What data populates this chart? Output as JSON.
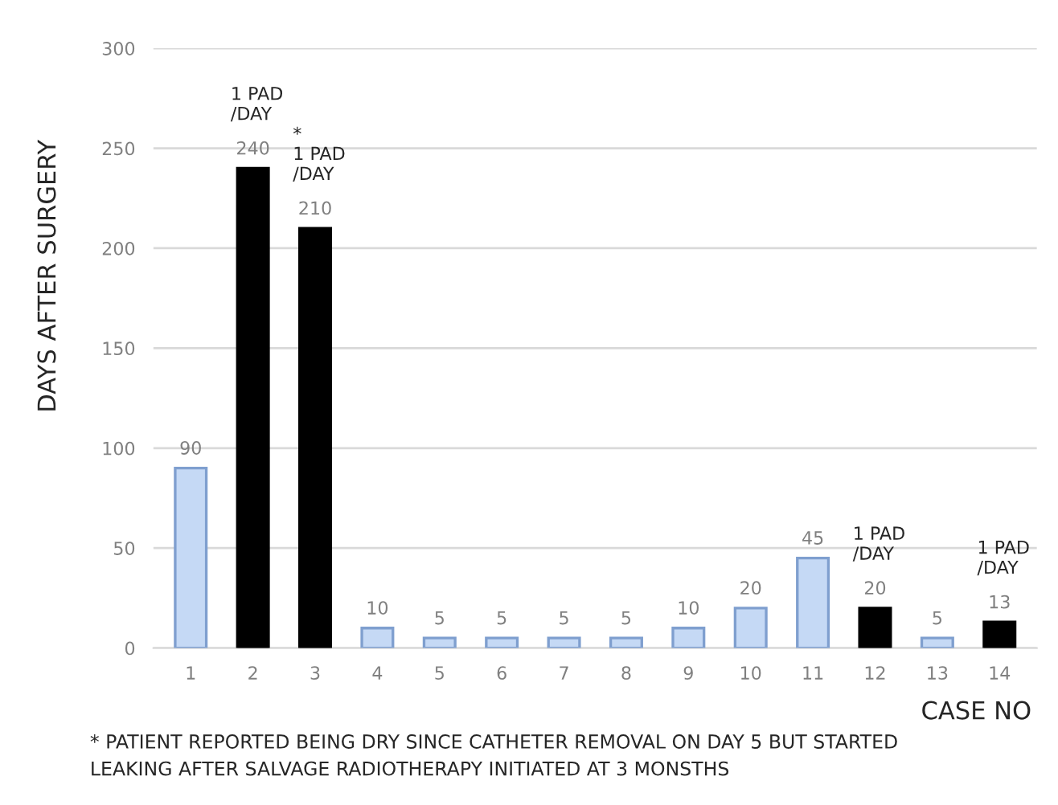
{
  "chart_data": {
    "type": "bar",
    "xlabel": "CASE NO",
    "ylabel": "DAYS AFTER SURGERY",
    "categories": [
      "1",
      "2",
      "3",
      "4",
      "5",
      "6",
      "7",
      "8",
      "9",
      "10",
      "11",
      "12",
      "13",
      "14"
    ],
    "values": [
      90,
      240,
      210,
      10,
      5,
      5,
      5,
      5,
      10,
      20,
      45,
      20,
      5,
      13
    ],
    "colors": [
      "#c5d9f5",
      "#000000",
      "#000000",
      "#c5d9f5",
      "#c5d9f5",
      "#c5d9f5",
      "#c5d9f5",
      "#c5d9f5",
      "#c5d9f5",
      "#c5d9f5",
      "#c5d9f5",
      "#000000",
      "#c5d9f5",
      "#000000"
    ],
    "ylim": [
      0,
      300
    ],
    "yticks": [
      0,
      50,
      100,
      150,
      200,
      250,
      300
    ],
    "grid": "y",
    "data_labels": true,
    "annotations": [
      {
        "text": "1 PAD\n/DAY",
        "x": "2",
        "y": 240
      },
      {
        "text": "*\n1 PAD\n/DAY",
        "x": "3",
        "y": 210
      },
      {
        "text": "1 PAD\n/DAY",
        "x": "12",
        "y": 20
      },
      {
        "text": "1 PAD\n/DAY",
        "x": "14",
        "y": 13
      },
      "* PATIENT REPORTED BEING DRY SINCE CATHETER REMOVAL ON DAY 5 BUT STARTED\nLEAKING AFTER SALVAGE RADIOTHERAPY INITIATED AT 3 MONSTHS"
    ]
  }
}
